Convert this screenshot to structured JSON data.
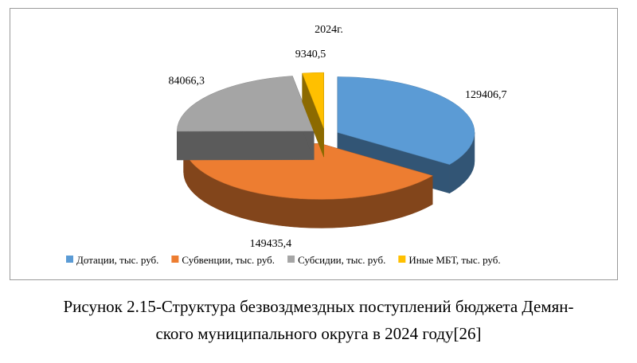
{
  "chart_data": {
    "type": "pie",
    "title": "2024г.",
    "categories": [
      "Дотации, тыс. руб.",
      "Субвенции, тыс. руб.",
      "Субсидии, тыс. руб.",
      "Иные МБТ, тыс. руб."
    ],
    "values": [
      129406.7,
      149435.4,
      84066.3,
      9340.5
    ],
    "value_labels": [
      "129406,7",
      "149435,4",
      "84066,3",
      "9340,5"
    ],
    "colors": [
      "#5b9bd5",
      "#ed7d31",
      "#a5a5a5",
      "#ffc000"
    ],
    "exploded": true,
    "three_d": true,
    "legend_position": "bottom"
  },
  "caption": {
    "line1": "Рисунок 2.15-Структура безвоздмездных поступлений бюджета Демян-",
    "line2": "ского муниципального округа в 2024 году[26]"
  }
}
